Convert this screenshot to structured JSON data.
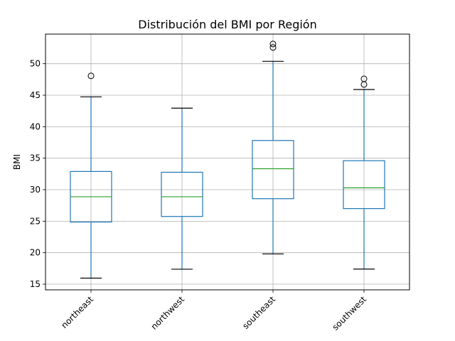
{
  "chart_data": {
    "type": "box",
    "title": "Distribución del BMI por Región",
    "xlabel": "",
    "ylabel": "BMI",
    "categories": [
      "northeast",
      "northwest",
      "southeast",
      "southwest"
    ],
    "ylim": [
      14.1,
      54.7
    ],
    "yticks": [
      15,
      20,
      25,
      30,
      35,
      40,
      45,
      50
    ],
    "grid": true,
    "boxes": [
      {
        "category": "northeast",
        "whisker_low": 15.96,
        "q1": 24.87,
        "median": 28.88,
        "q3": 32.89,
        "whisker_high": 44.74,
        "outliers": [
          48.07
        ]
      },
      {
        "category": "northwest",
        "whisker_low": 17.38,
        "q1": 25.75,
        "median": 28.88,
        "q3": 32.77,
        "whisker_high": 42.94,
        "outliers": []
      },
      {
        "category": "southeast",
        "whisker_low": 19.8,
        "q1": 28.57,
        "median": 33.33,
        "q3": 37.81,
        "whisker_high": 50.38,
        "outliers": [
          52.58,
          53.13
        ]
      },
      {
        "category": "southwest",
        "whisker_low": 17.4,
        "q1": 27.0,
        "median": 30.3,
        "q3": 34.6,
        "whisker_high": 45.9,
        "outliers": [
          46.7,
          47.6
        ]
      }
    ],
    "colors": {
      "box": "#1f77b4",
      "median": "#2ca02c",
      "whisker_cap": "#000000",
      "grid": "#b0b0b0"
    }
  }
}
